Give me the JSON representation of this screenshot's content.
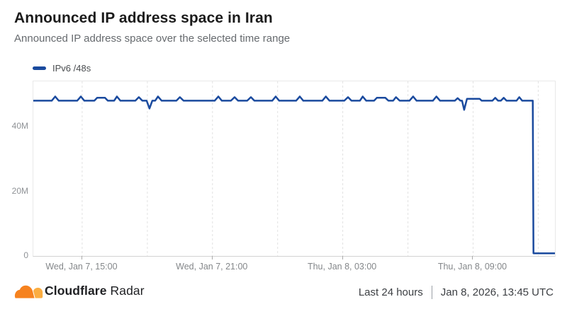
{
  "header": {
    "title": "Announced IP address space in Iran",
    "subtitle": "Announced IP address space over the selected time range"
  },
  "legend": {
    "items": [
      {
        "label": "IPv6 /48s",
        "color": "#1A4A9E"
      }
    ]
  },
  "chart_data": {
    "type": "line",
    "title": "Announced IP address space in Iran",
    "xlabel": "",
    "ylabel": "",
    "legend_position": "top-left",
    "grid": "vertical-dashed",
    "x_axis": {
      "kind": "time",
      "range_hours": 24.02,
      "gridlines": [
        2.25,
        5.25,
        8.25,
        11.25,
        14.25,
        17.25,
        20.25,
        23.25
      ],
      "ticks": [
        {
          "t": 2.25,
          "label": "Wed, Jan 7, 15:00"
        },
        {
          "t": 8.25,
          "label": "Wed, Jan 7, 21:00"
        },
        {
          "t": 14.25,
          "label": "Thu, Jan 8, 03:00"
        },
        {
          "t": 20.25,
          "label": "Thu, Jan 8, 09:00"
        }
      ]
    },
    "y_axis": {
      "min": 0,
      "max": 54,
      "unit": "millions of /48s",
      "ticks": [
        {
          "v": 0,
          "label": "0"
        },
        {
          "v": 20,
          "label": "20M"
        },
        {
          "v": 40,
          "label": "40M"
        }
      ]
    },
    "series": [
      {
        "name": "IPv6 /48s",
        "color": "#1A4A9E",
        "unit_scale": "millions",
        "points": [
          [
            0,
            48
          ],
          [
            0.85,
            48
          ],
          [
            1.01,
            49.3
          ],
          [
            1.17,
            48
          ],
          [
            2.02,
            48
          ],
          [
            2.19,
            49.3
          ],
          [
            2.35,
            48
          ],
          [
            2.81,
            48
          ],
          [
            2.94,
            48.9
          ],
          [
            3.3,
            48.9
          ],
          [
            3.43,
            48
          ],
          [
            3.72,
            48
          ],
          [
            3.85,
            49.3
          ],
          [
            4.01,
            48
          ],
          [
            4.7,
            48
          ],
          [
            4.86,
            49.1
          ],
          [
            5.02,
            48
          ],
          [
            5.22,
            48
          ],
          [
            5.35,
            45.6
          ],
          [
            5.48,
            48
          ],
          [
            5.61,
            48
          ],
          [
            5.74,
            49.3
          ],
          [
            5.91,
            48
          ],
          [
            6.59,
            48
          ],
          [
            6.75,
            49.1
          ],
          [
            6.92,
            48
          ],
          [
            8.35,
            48
          ],
          [
            8.52,
            49.3
          ],
          [
            8.68,
            48
          ],
          [
            9.1,
            48
          ],
          [
            9.27,
            49.1
          ],
          [
            9.43,
            48
          ],
          [
            9.85,
            48
          ],
          [
            10.02,
            49.1
          ],
          [
            10.18,
            48
          ],
          [
            11.0,
            48
          ],
          [
            11.16,
            49.3
          ],
          [
            11.32,
            48
          ],
          [
            12.1,
            48
          ],
          [
            12.27,
            49.3
          ],
          [
            12.43,
            48
          ],
          [
            13.31,
            48
          ],
          [
            13.47,
            49.3
          ],
          [
            13.64,
            48
          ],
          [
            14.32,
            48
          ],
          [
            14.49,
            49.1
          ],
          [
            14.65,
            48
          ],
          [
            15.04,
            48
          ],
          [
            15.17,
            49.3
          ],
          [
            15.33,
            48
          ],
          [
            15.69,
            48
          ],
          [
            15.82,
            48.9
          ],
          [
            16.21,
            48.9
          ],
          [
            16.35,
            48
          ],
          [
            16.57,
            48
          ],
          [
            16.7,
            49.1
          ],
          [
            16.87,
            48
          ],
          [
            17.32,
            48
          ],
          [
            17.49,
            49.3
          ],
          [
            17.65,
            48
          ],
          [
            18.4,
            48
          ],
          [
            18.56,
            49.3
          ],
          [
            18.73,
            48
          ],
          [
            19.41,
            48
          ],
          [
            19.54,
            48.8
          ],
          [
            19.67,
            48
          ],
          [
            19.74,
            48
          ],
          [
            19.84,
            45.2
          ],
          [
            19.97,
            48.6
          ],
          [
            20.1,
            48.6
          ],
          [
            20.55,
            48.6
          ],
          [
            20.65,
            48
          ],
          [
            21.14,
            48
          ],
          [
            21.27,
            48.9
          ],
          [
            21.4,
            48
          ],
          [
            21.53,
            48
          ],
          [
            21.66,
            48.9
          ],
          [
            21.79,
            48
          ],
          [
            22.25,
            48
          ],
          [
            22.38,
            49.1
          ],
          [
            22.51,
            48
          ],
          [
            23.0,
            48
          ],
          [
            23.03,
            0.8
          ],
          [
            24.02,
            0.8
          ]
        ]
      }
    ]
  },
  "footer": {
    "brand_bold": "Cloudflare",
    "brand_regular": "Radar",
    "time_range": "Last 24 hours",
    "timestamp": "Jan 8, 2026, 13:45 UTC"
  },
  "colors": {
    "line": "#1A4A9E",
    "cloudflare_orange": "#F6821F",
    "cloudflare_orange_light": "#FBAD41"
  }
}
